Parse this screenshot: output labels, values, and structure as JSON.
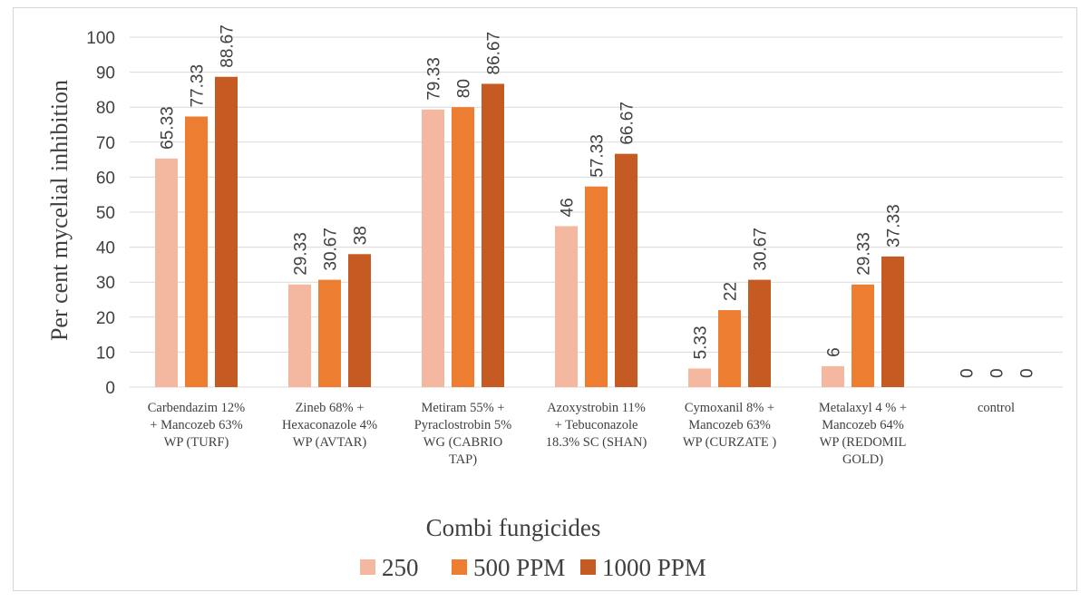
{
  "chart_data": {
    "type": "bar",
    "title": "",
    "xlabel": "Combi fungicides",
    "ylabel": "Per cent mycelial inhibition",
    "ylim": [
      0,
      100
    ],
    "yticks": [
      "0",
      "10",
      "20",
      "30",
      "40",
      "50",
      "60",
      "70",
      "80",
      "90",
      "100"
    ],
    "grid": true,
    "legend_position": "bottom",
    "categories": [
      [
        "Carbendazim 12%",
        "+ Mancozeb 63%",
        "WP (TURF)"
      ],
      [
        "Zineb 68% +",
        "Hexaconazole 4%",
        "WP (AVTAR)"
      ],
      [
        "Metiram 55% +",
        "Pyraclostrobin 5%",
        "WG (CABRIO",
        "TAP)"
      ],
      [
        "Azoxystrobin 11%",
        "+ Tebuconazole",
        "18.3% SC (SHAN)"
      ],
      [
        "Cymoxanil 8% +",
        "Mancozeb 63%",
        "WP (CURZATE )"
      ],
      [
        "Metalaxyl 4 % +",
        "Mancozeb 64%",
        "WP (REDOMIL",
        "GOLD)"
      ],
      [
        "control"
      ]
    ],
    "series": [
      {
        "name": "250",
        "color": "#f4b7a0",
        "values": [
          65.33,
          29.33,
          79.33,
          46,
          5.33,
          6,
          0
        ],
        "labels": [
          "65.33",
          "29.33",
          "79.33",
          "46",
          "5.33",
          "6",
          "0"
        ]
      },
      {
        "name": "500 PPM",
        "color": "#ed7d31",
        "values": [
          77.33,
          30.67,
          80,
          57.33,
          22,
          29.33,
          0
        ],
        "labels": [
          "77.33",
          "30.67",
          "80",
          "57.33",
          "22",
          "29.33",
          "0"
        ]
      },
      {
        "name": "1000 PPM",
        "color": "#c55a22",
        "values": [
          88.67,
          38,
          86.67,
          66.67,
          30.67,
          37.33,
          0
        ],
        "labels": [
          "88.67",
          "38",
          "86.67",
          "66.67",
          "30.67",
          "37.33",
          "0"
        ]
      }
    ]
  }
}
